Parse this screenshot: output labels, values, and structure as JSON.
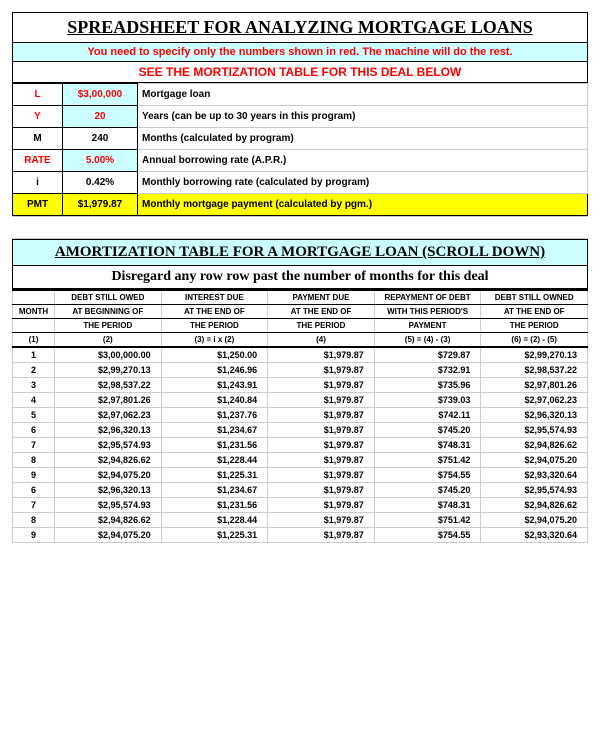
{
  "colors": {
    "cyan": "#ccffff",
    "yellow": "#ffff00",
    "red": "#ff0000",
    "grid": "#cccccc",
    "black": "#000000"
  },
  "header": {
    "title": "SPREADSHEET FOR ANALYZING MORTGAGE LOANS",
    "instruction": "You need to specify only the numbers shown in red. The machine will do the rest.",
    "see_table": "SEE THE MORTIZATION TABLE FOR THIS DEAL BELOW"
  },
  "inputs": [
    {
      "label": "L",
      "label_red": true,
      "value": "$3,00,000",
      "value_red": true,
      "value_bg": "cyan",
      "desc": "Mortgage loan"
    },
    {
      "label": "Y",
      "label_red": true,
      "value": "20",
      "value_red": true,
      "value_bg": "cyan",
      "desc": "Years (can be up to 30 years in this program)"
    },
    {
      "label": "M",
      "label_red": false,
      "value": "240",
      "value_red": false,
      "value_bg": "",
      "desc": "Months (calculated by program)"
    },
    {
      "label": "RATE",
      "label_red": true,
      "value": "5.00%",
      "value_red": true,
      "value_bg": "cyan",
      "desc": "Annual borrowing rate (A.P.R.)"
    },
    {
      "label": "i",
      "label_red": false,
      "value": "0.42%",
      "value_red": false,
      "value_bg": "",
      "desc": "Monthly borrowing rate (calculated by program)"
    },
    {
      "label": "PMT",
      "label_red": false,
      "value": "$1,979.87",
      "value_red": false,
      "value_bg": "yellow",
      "desc": "Monthly mortgage payment (calculated by pgm.)",
      "row_bg": "yellow",
      "strong": true
    }
  ],
  "amort": {
    "title": "AMORTIZATION TABLE FOR A MORTGAGE LOAN (SCROLL DOWN)",
    "disregard": "Disregard any row row past the number of months for this deal",
    "headers": {
      "row1": [
        "",
        "DEBT STILL OWED",
        "INTEREST DUE",
        "PAYMENT DUE",
        "REPAYMENT OF DEBT",
        "DEBT STILL OWNED"
      ],
      "row2": [
        "MONTH",
        "AT BEGINNING OF",
        "AT THE END OF",
        "AT THE END OF",
        "WITH THIS PERIOD'S",
        "AT THE END OF"
      ],
      "row3": [
        "",
        "THE PERIOD",
        "THE PERIOD",
        "THE PERIOD",
        "PAYMENT",
        "THE PERIOD"
      ],
      "row4": [
        "(1)",
        "(2)",
        "(3) = i x (2)",
        "(4)",
        "(5) = (4) - (3)",
        "(6) = (2) - (5)"
      ]
    },
    "rows": [
      {
        "m": "1",
        "c2": "$3,00,000.00",
        "c3": "$1,250.00",
        "c4": "$1,979.87",
        "c5": "$729.87",
        "c6": "$2,99,270.13"
      },
      {
        "m": "2",
        "c2": "$2,99,270.13",
        "c3": "$1,246.96",
        "c4": "$1,979.87",
        "c5": "$732.91",
        "c6": "$2,98,537.22"
      },
      {
        "m": "3",
        "c2": "$2,98,537.22",
        "c3": "$1,243.91",
        "c4": "$1,979.87",
        "c5": "$735.96",
        "c6": "$2,97,801.26"
      },
      {
        "m": "4",
        "c2": "$2,97,801.26",
        "c3": "$1,240.84",
        "c4": "$1,979.87",
        "c5": "$739.03",
        "c6": "$2,97,062.23"
      },
      {
        "m": "5",
        "c2": "$2,97,062.23",
        "c3": "$1,237.76",
        "c4": "$1,979.87",
        "c5": "$742.11",
        "c6": "$2,96,320.13"
      },
      {
        "m": "6",
        "c2": "$2,96,320.13",
        "c3": "$1,234.67",
        "c4": "$1,979.87",
        "c5": "$745.20",
        "c6": "$2,95,574.93"
      },
      {
        "m": "7",
        "c2": "$2,95,574.93",
        "c3": "$1,231.56",
        "c4": "$1,979.87",
        "c5": "$748.31",
        "c6": "$2,94,826.62"
      },
      {
        "m": "8",
        "c2": "$2,94,826.62",
        "c3": "$1,228.44",
        "c4": "$1,979.87",
        "c5": "$751.42",
        "c6": "$2,94,075.20"
      },
      {
        "m": "9",
        "c2": "$2,94,075.20",
        "c3": "$1,225.31",
        "c4": "$1,979.87",
        "c5": "$754.55",
        "c6": "$2,93,320.64"
      },
      {
        "m": "6",
        "c2": "$2,96,320.13",
        "c3": "$1,234.67",
        "c4": "$1,979.87",
        "c5": "$745.20",
        "c6": "$2,95,574.93"
      },
      {
        "m": "7",
        "c2": "$2,95,574.93",
        "c3": "$1,231.56",
        "c4": "$1,979.87",
        "c5": "$748.31",
        "c6": "$2,94,826.62"
      },
      {
        "m": "8",
        "c2": "$2,94,826.62",
        "c3": "$1,228.44",
        "c4": "$1,979.87",
        "c5": "$751.42",
        "c6": "$2,94,075.20"
      },
      {
        "m": "9",
        "c2": "$2,94,075.20",
        "c3": "$1,225.31",
        "c4": "$1,979.87",
        "c5": "$754.55",
        "c6": "$2,93,320.64"
      }
    ]
  }
}
